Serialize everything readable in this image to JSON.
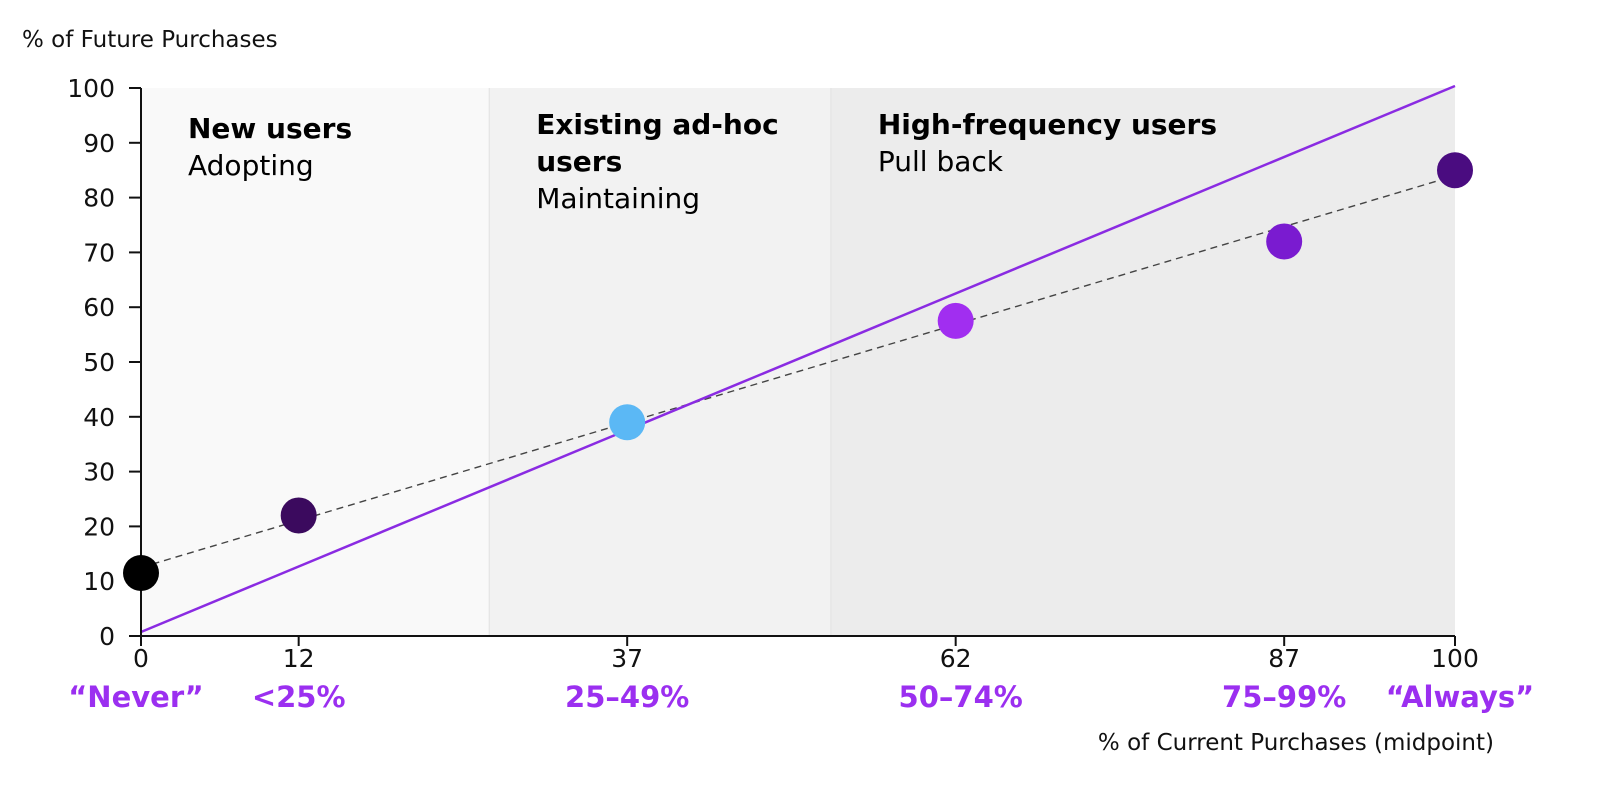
{
  "chart_data": {
    "type": "scatter",
    "ylabel": "% of Future Purchases",
    "xlabel": "% of Current Purchases (midpoint)",
    "xlim": [
      0,
      100
    ],
    "ylim": [
      0,
      100
    ],
    "x_ticks": [
      0,
      12,
      37,
      62,
      87,
      100
    ],
    "y_ticks": [
      0,
      10,
      20,
      30,
      40,
      50,
      60,
      70,
      80,
      90,
      100
    ],
    "category_labels": [
      {
        "x": 0,
        "label": "“Never”"
      },
      {
        "x": 12,
        "label": "<25%"
      },
      {
        "x": 37,
        "label": "25–49%"
      },
      {
        "x": 62,
        "label": "50–74%"
      },
      {
        "x": 87,
        "label": "75–99%"
      },
      {
        "x": 100,
        "label": "“Always”"
      }
    ],
    "points": [
      {
        "x": 0,
        "y": 11.5,
        "color": "#000000"
      },
      {
        "x": 12,
        "y": 22,
        "color": "#3b0a5e"
      },
      {
        "x": 37,
        "y": 39,
        "color": "#5bb8f5"
      },
      {
        "x": 62,
        "y": 57.5,
        "color": "#a12ef0"
      },
      {
        "x": 87,
        "y": 72,
        "color": "#7a1bd0"
      },
      {
        "x": 100,
        "y": 85,
        "color": "#4a0c80"
      }
    ],
    "reference_line": {
      "from": [
        0,
        0
      ],
      "to": [
        100,
        100
      ],
      "color": "#8a2be2"
    },
    "trend_line": {
      "from": [
        0,
        12.5
      ],
      "to": [
        100,
        84
      ],
      "color": "#444444",
      "style": "dashed"
    },
    "zones": [
      {
        "x_range": [
          0,
          26.5
        ],
        "fill": "#f9f9f9",
        "title_lines": [
          "New users"
        ],
        "subtitle": "Adopting"
      },
      {
        "x_range": [
          26.5,
          52.5
        ],
        "fill": "#f2f2f2",
        "title_lines": [
          "Existing ad-hoc",
          "users"
        ],
        "subtitle": "Maintaining"
      },
      {
        "x_range": [
          52.5,
          100
        ],
        "fill": "#ececec",
        "title_lines": [
          "High-frequency users"
        ],
        "subtitle": "Pull back"
      }
    ],
    "category_color": "#9b2ff0",
    "grid": false,
    "legend": "none"
  }
}
